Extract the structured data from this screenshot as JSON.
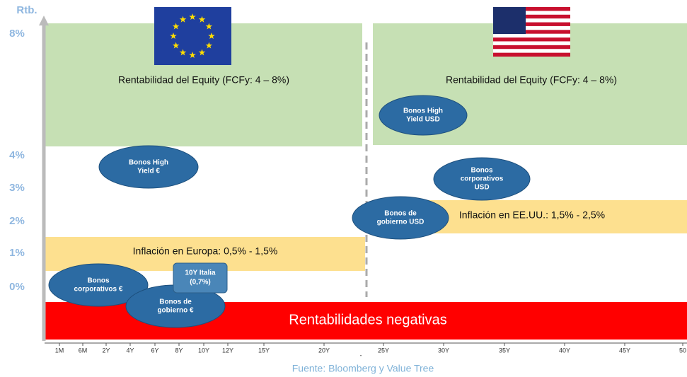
{
  "axis": {
    "y_title": "Rtb.",
    "y_labels": [
      "8%",
      "4%",
      "3%",
      "2%",
      "1%",
      "0%"
    ],
    "x_labels": [
      "1M",
      "6M",
      "2Y",
      "4Y",
      "6Y",
      "8Y",
      "10Y",
      "12Y",
      "15Y",
      "20Y",
      "25Y",
      "30Y",
      "35Y",
      "40Y",
      "45Y",
      "50"
    ],
    "x_mark": "-"
  },
  "zones": [
    {
      "label": "Rentabilidad del Equity (FCFy: 4 – 8%)"
    },
    {
      "label": "Rentabilidad del Equity (FCFy: 4 – 8%)"
    },
    {
      "label": "Inflación en Europa: 0,5% - 1,5%"
    },
    {
      "label": "Inflación en EE.UU.: 1,5% - 2,5%"
    },
    {
      "label": "Rentabilidades negativas"
    }
  ],
  "bubbles": [
    {
      "lines": [
        "Bonos High",
        "Yield €"
      ]
    },
    {
      "lines": [
        "Bonos High",
        "Yield USD"
      ]
    },
    {
      "lines": [
        "Bonos",
        "corporativos",
        "USD"
      ]
    },
    {
      "lines": [
        "Bonos de",
        "gobierno USD"
      ]
    },
    {
      "lines": [
        "Bonos",
        "corporativos €"
      ]
    },
    {
      "lines": [
        "Bonos de",
        "gobierno €"
      ]
    }
  ],
  "callout": {
    "lines": [
      "10Y Italia",
      "(0,7%)"
    ]
  },
  "source": "Fuente: Bloomberg y Value Tree"
}
